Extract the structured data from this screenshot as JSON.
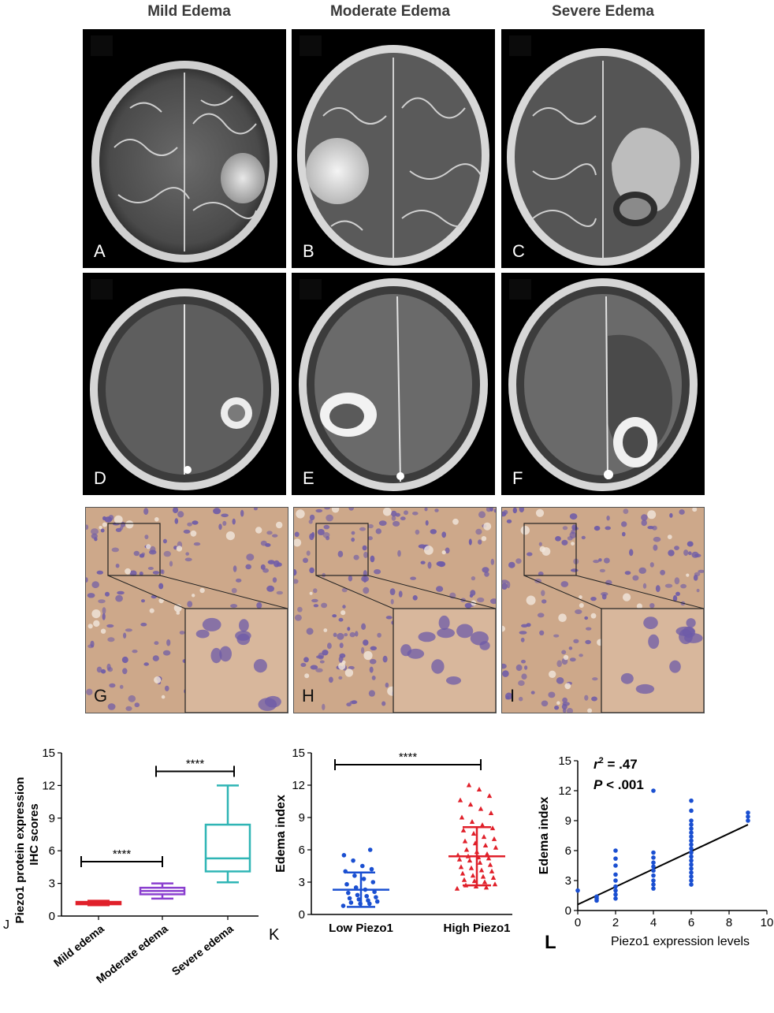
{
  "columns": [
    "Mild Edema",
    "Moderate Edema",
    "Severe Edema"
  ],
  "mri_panels": [
    "A",
    "B",
    "C",
    "D",
    "E",
    "F"
  ],
  "ihc_panels": [
    "G",
    "H",
    "I"
  ],
  "colors": {
    "red": "#e0202a",
    "purple": "#8a3fcf",
    "teal": "#2fb5b5",
    "blue": "#1a4fd1",
    "ihc_bg": "#cda88a",
    "nucleus": "#6e5ba8"
  },
  "chart_data": [
    {
      "panel_label": "J",
      "type": "box",
      "ylabel_line1": "Piezo1 protein expression",
      "ylabel_line2": "IHC scores",
      "categories": [
        "Mild edema",
        "Moderate edema",
        "Severe edema"
      ],
      "yticks": [
        "0",
        "3",
        "6",
        "9",
        "12",
        "15"
      ],
      "ylim": [
        0,
        15
      ],
      "boxes": [
        {
          "min": 1.0,
          "q1": 1.1,
          "median": 1.2,
          "q3": 1.3,
          "max": 1.4
        },
        {
          "min": 1.6,
          "q1": 2.0,
          "median": 2.3,
          "q3": 2.6,
          "max": 3.0
        },
        {
          "min": 3.1,
          "q1": 4.1,
          "median": 5.3,
          "q3": 8.4,
          "max": 12.0
        }
      ],
      "significance": [
        {
          "from": 0,
          "to": 1,
          "y": 5.0,
          "label": "****"
        },
        {
          "from": 1,
          "to": 2,
          "y": 13.3,
          "label": "****"
        }
      ]
    },
    {
      "panel_label": "K",
      "type": "scatter",
      "ylabel": "Edema index",
      "categories": [
        "Low Piezo1",
        "High Piezo1"
      ],
      "yticks": [
        "0",
        "3",
        "6",
        "9",
        "12",
        "15"
      ],
      "ylim": [
        0,
        15
      ],
      "series": [
        {
          "mean": 2.3,
          "sd_low": 0.7,
          "sd_high": 3.9,
          "values": [
            0.8,
            1.0,
            1.0,
            1.1,
            1.2,
            1.3,
            1.4,
            1.5,
            1.6,
            1.7,
            1.8,
            2.0,
            2.1,
            2.3,
            2.5,
            2.8,
            3.0,
            3.3,
            3.6,
            4.0,
            4.2,
            4.5,
            5.0,
            5.5,
            6.0
          ]
        },
        {
          "mean": 5.4,
          "sd_low": 2.7,
          "sd_high": 8.1,
          "values": [
            2.4,
            2.5,
            2.6,
            2.7,
            2.8,
            3.0,
            3.1,
            3.2,
            3.4,
            3.5,
            3.6,
            3.8,
            4.0,
            4.1,
            4.3,
            4.4,
            4.6,
            4.8,
            5.0,
            5.1,
            5.2,
            5.3,
            5.4,
            5.5,
            5.6,
            5.8,
            6.0,
            6.2,
            6.4,
            6.6,
            6.8,
            7.0,
            7.2,
            7.5,
            7.8,
            8.0,
            8.3,
            8.6,
            9.0,
            9.4,
            9.8,
            10.2,
            10.6,
            11.0,
            11.6,
            12.0
          ]
        }
      ],
      "significance": [
        {
          "from": 0,
          "to": 1,
          "y": 13.9,
          "label": "****"
        }
      ]
    },
    {
      "panel_label": "L",
      "type": "scatter",
      "xlabel": "Piezo1 expression levels",
      "ylabel": "Edema index",
      "xticks": [
        "0",
        "2",
        "4",
        "6",
        "8",
        "10"
      ],
      "yticks": [
        "0",
        "3",
        "6",
        "9",
        "12",
        "15"
      ],
      "xlim": [
        0,
        10
      ],
      "ylim": [
        0,
        15
      ],
      "stat_r2": " = .47",
      "stat_p": " < .001",
      "regression": {
        "x0": 0,
        "y0": 0.6,
        "x1": 9,
        "y1": 8.6
      },
      "points": [
        [
          0,
          2.0
        ],
        [
          1,
          1.0
        ],
        [
          1,
          1.2
        ],
        [
          1,
          1.4
        ],
        [
          2,
          1.2
        ],
        [
          2,
          1.6
        ],
        [
          2,
          2.0
        ],
        [
          2,
          2.4
        ],
        [
          2,
          3.0
        ],
        [
          2,
          3.6
        ],
        [
          2,
          4.5
        ],
        [
          2,
          5.2
        ],
        [
          2,
          6.0
        ],
        [
          4,
          2.2
        ],
        [
          4,
          2.6
        ],
        [
          4,
          3.0
        ],
        [
          4,
          3.5
        ],
        [
          4,
          4.0
        ],
        [
          4,
          4.4
        ],
        [
          4,
          4.8
        ],
        [
          4,
          5.3
        ],
        [
          4,
          5.8
        ],
        [
          4,
          12.0
        ],
        [
          6,
          2.6
        ],
        [
          6,
          3.0
        ],
        [
          6,
          3.4
        ],
        [
          6,
          3.8
        ],
        [
          6,
          4.2
        ],
        [
          6,
          4.6
        ],
        [
          6,
          5.0
        ],
        [
          6,
          5.4
        ],
        [
          6,
          5.8
        ],
        [
          6,
          6.2
        ],
        [
          6,
          6.6
        ],
        [
          6,
          7.0
        ],
        [
          6,
          7.4
        ],
        [
          6,
          7.8
        ],
        [
          6,
          8.2
        ],
        [
          6,
          8.6
        ],
        [
          6,
          9.0
        ],
        [
          6,
          10.0
        ],
        [
          6,
          11.0
        ],
        [
          9,
          9.0
        ],
        [
          9,
          9.4
        ],
        [
          9,
          9.8
        ]
      ]
    }
  ]
}
